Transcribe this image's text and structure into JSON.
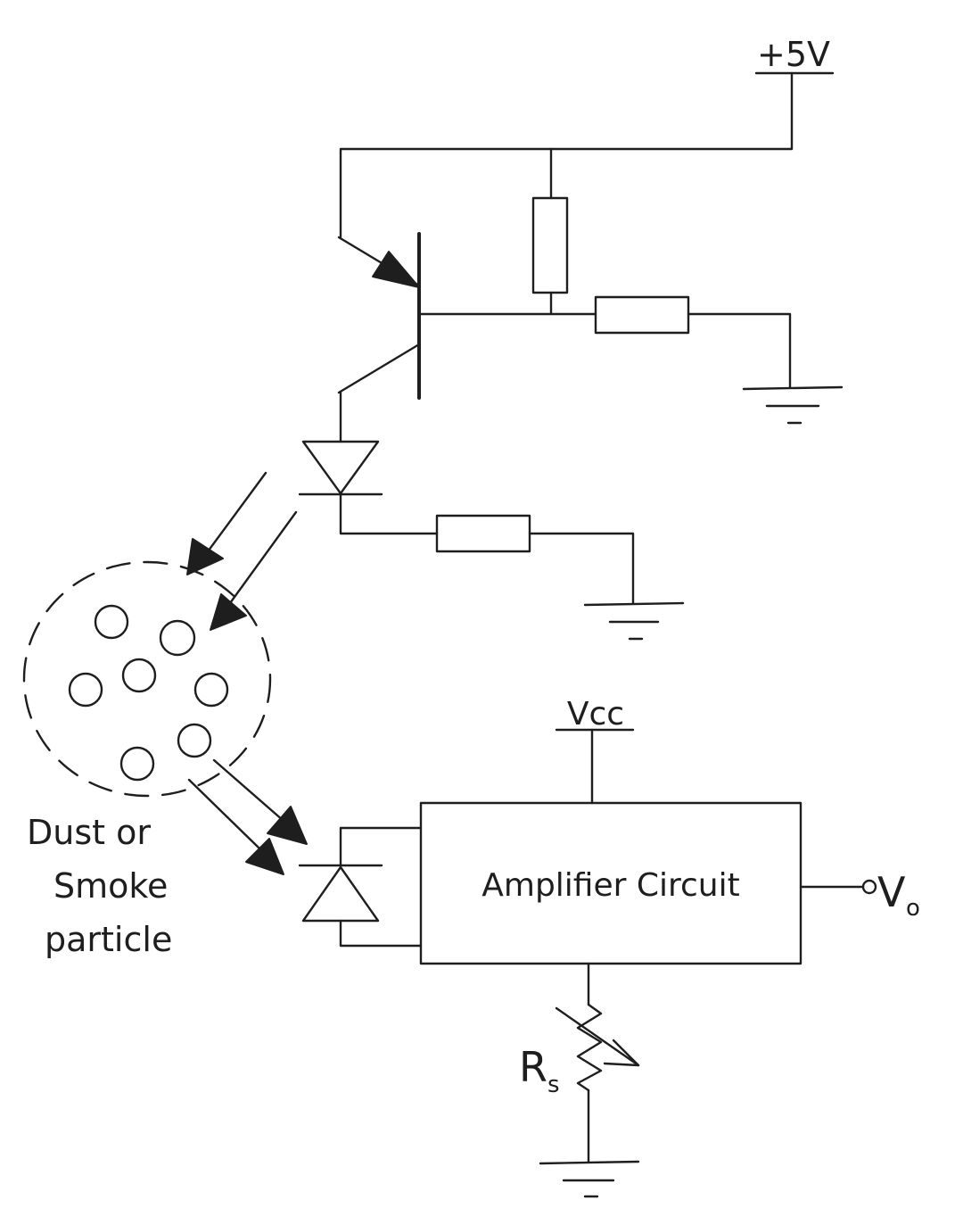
{
  "diagram": {
    "supply_label": "+5V",
    "vcc_label": "Vcc",
    "amplifier_label": "Amplifier Circuit",
    "output_label": "V",
    "output_subscript": "o",
    "sensor_resistor_label": "R",
    "sensor_resistor_subscript": "s",
    "particle_label_line1": "Dust or",
    "particle_label_line2": "Smoke",
    "particle_label_line3": "particle"
  }
}
